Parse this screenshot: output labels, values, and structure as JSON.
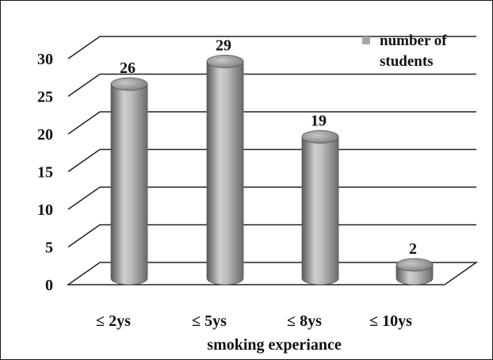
{
  "chart_data": {
    "type": "bar",
    "title": "",
    "categories": [
      "≤ 2ys",
      "≤ 5ys",
      "≤ 8ys",
      "≤ 10ys"
    ],
    "series": [
      {
        "name": "number of students",
        "values": [
          26,
          29,
          19,
          2
        ]
      }
    ],
    "xlabel": "smoking experiance",
    "ylabel": "",
    "ylim": [
      0,
      30
    ],
    "yticks": [
      0,
      5,
      10,
      15,
      20,
      25,
      30
    ],
    "data_labels": true,
    "grid": true,
    "legend_position": "top-right",
    "style": "3d-cylinder",
    "colors": {
      "bar_fill": "#a6a6a6",
      "grid": "#222222",
      "background": "#ffffff"
    }
  }
}
